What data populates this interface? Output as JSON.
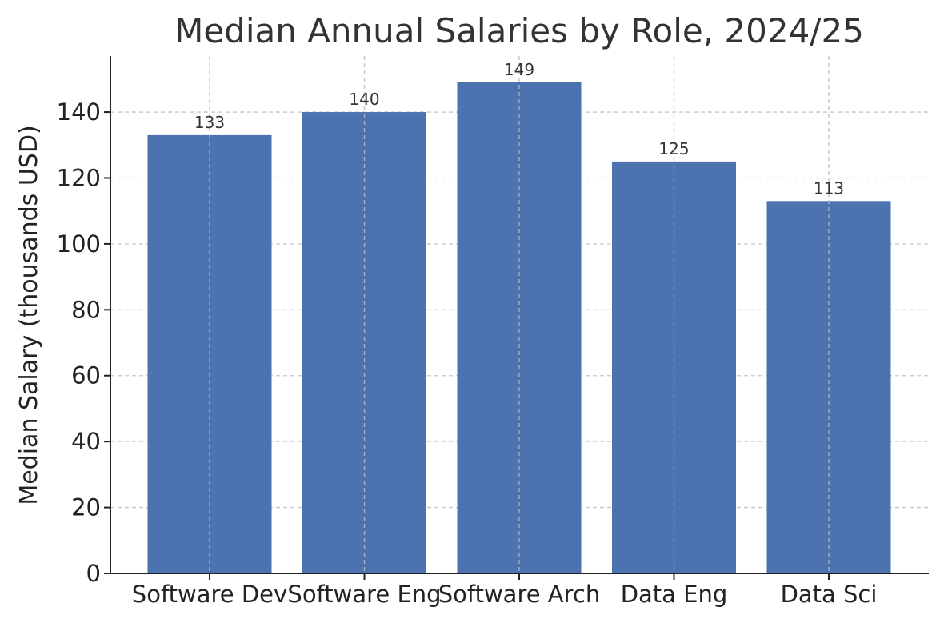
{
  "chart_data": {
    "type": "bar",
    "title": "Median Annual Salaries by Role, 2024/25",
    "xlabel": "",
    "ylabel": "Median Salary (thousands USD)",
    "categories": [
      "Software Dev",
      "Software Eng",
      "Software Arch",
      "Data Eng",
      "Data Sci"
    ],
    "values": [
      133,
      140,
      149,
      125,
      113
    ],
    "data_labels": [
      "133",
      "140",
      "149",
      "125",
      "113"
    ],
    "ylim": [
      0,
      157
    ],
    "yticks": [
      0,
      20,
      40,
      60,
      80,
      100,
      120,
      140
    ],
    "grid": true,
    "grid_style": "dashed",
    "legend": "none",
    "colors": {
      "bar": "#4c72b0",
      "grid": "#c8c8c8",
      "axis": "#222222",
      "title": "#333333"
    }
  }
}
